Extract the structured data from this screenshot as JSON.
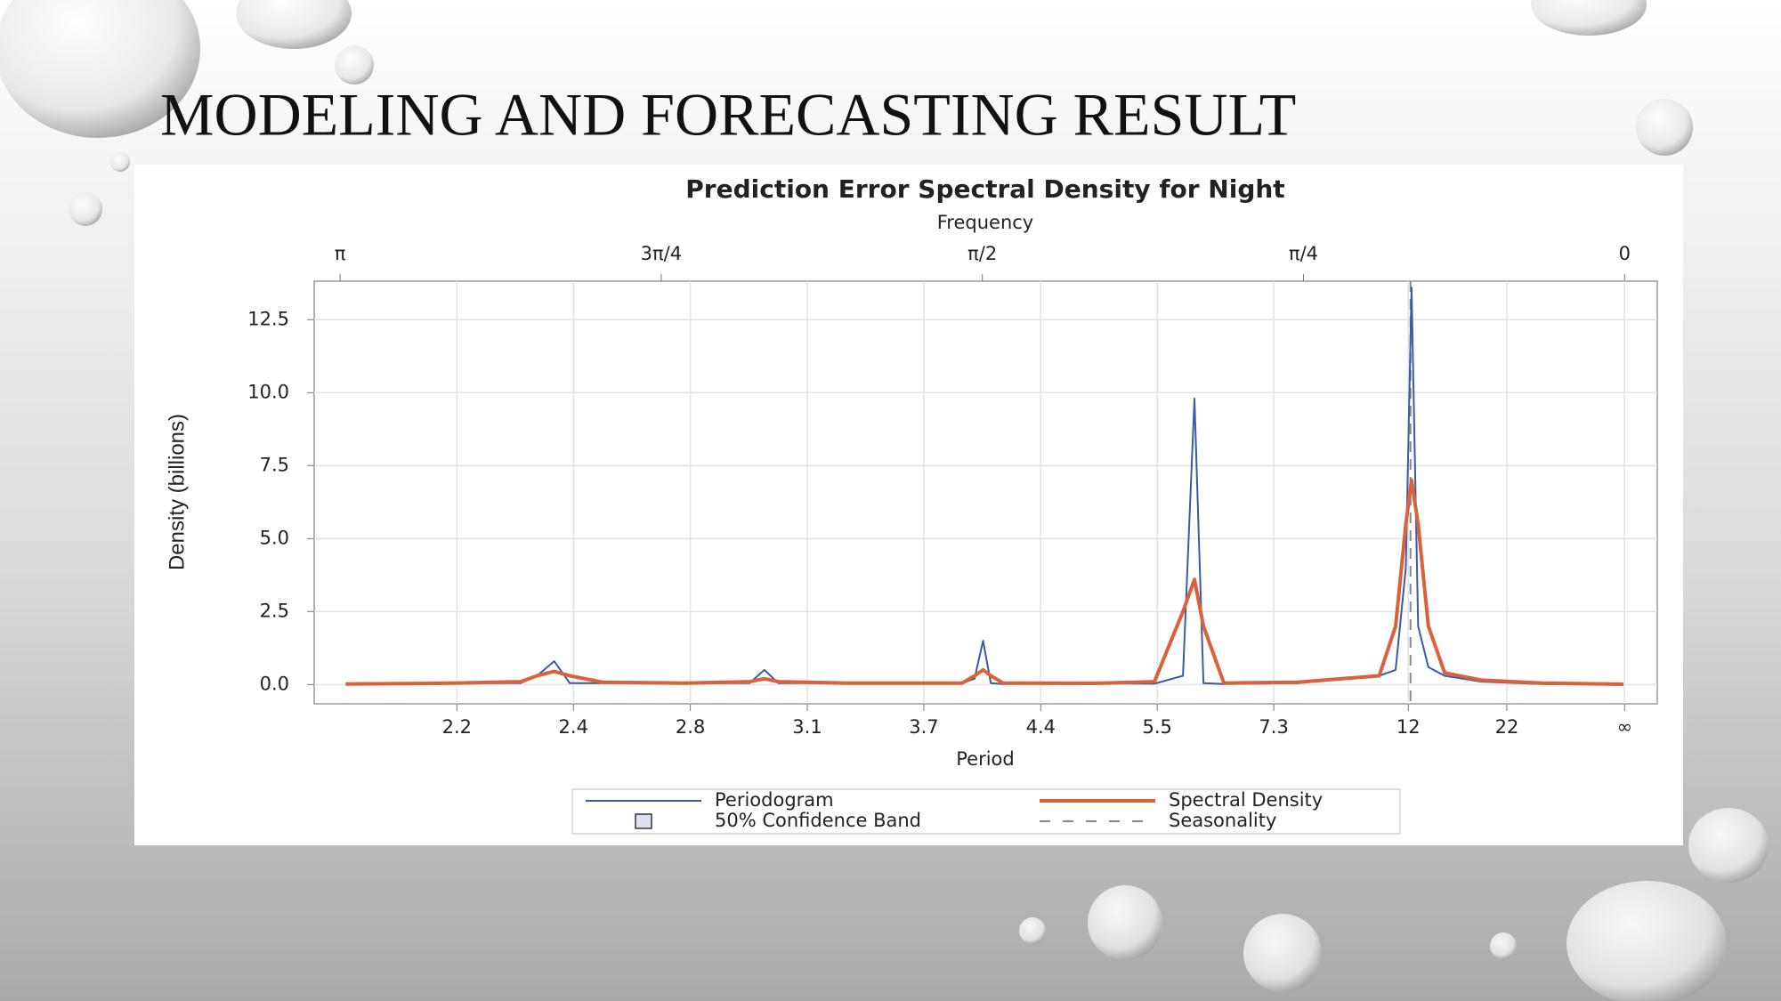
{
  "slide_title": "MODELING AND FORECASTING RESULT",
  "chart_data": {
    "type": "line",
    "title": "Prediction Error Spectral Density for Night",
    "x2_label": "Frequency",
    "x_label": "Period",
    "y_label": "Density (billions)",
    "x": [
      3.128,
      2.9,
      2.7,
      2.66,
      2.618,
      2.58,
      2.5,
      2.3,
      2.14,
      2.104,
      2.07,
      1.9,
      1.62,
      1.59,
      1.569,
      1.55,
      1.52,
      1.3,
      1.15,
      1.08,
      1.052,
      1.03,
      0.98,
      0.8,
      0.6,
      0.56,
      0.535,
      0.521,
      0.505,
      0.48,
      0.44,
      0.35,
      0.2,
      0.003
    ],
    "series": [
      {
        "name": "Periodogram",
        "color": "#3b5ba5",
        "width": 2,
        "values": [
          0.02,
          0.05,
          0.05,
          0.3,
          0.8,
          0.05,
          0.05,
          0.05,
          0.05,
          0.5,
          0.05,
          0.05,
          0.05,
          0.2,
          1.5,
          0.05,
          0.02,
          0.05,
          0.03,
          0.3,
          9.8,
          0.05,
          0.02,
          0.05,
          0.3,
          0.5,
          4,
          13.6,
          2,
          0.6,
          0.3,
          0.1,
          0.02,
          0.0
        ]
      },
      {
        "name": "Spectral Density",
        "color": "#d9623b",
        "width": 4,
        "values": [
          0.02,
          0.04,
          0.1,
          0.3,
          0.45,
          0.3,
          0.08,
          0.05,
          0.1,
          0.2,
          0.1,
          0.05,
          0.05,
          0.3,
          0.5,
          0.3,
          0.05,
          0.04,
          0.1,
          2.5,
          3.6,
          2,
          0.05,
          0.08,
          0.3,
          2,
          5.5,
          7.0,
          5.5,
          2,
          0.4,
          0.15,
          0.05,
          0.01
        ]
      }
    ],
    "legend_extra": [
      "50% Confidence Band",
      "Seasonality"
    ],
    "seasonality_x": 0.5236,
    "xlim": [
      3.205,
      -0.08
    ],
    "ylim": [
      -0.66,
      13.82
    ],
    "xticks": [
      {
        "value": 2.856,
        "label": "2.2"
      },
      {
        "value": 2.571,
        "label": "2.4"
      },
      {
        "value": 2.285,
        "label": "2.8"
      },
      {
        "value": 1.999,
        "label": "3.1"
      },
      {
        "value": 1.714,
        "label": "3.7"
      },
      {
        "value": 1.428,
        "label": "4.4"
      },
      {
        "value": 1.143,
        "label": "5.5"
      },
      {
        "value": 0.858,
        "label": "7.3"
      },
      {
        "value": 0.529,
        "label": "12"
      },
      {
        "value": 0.288,
        "label": "22"
      },
      {
        "value": 0,
        "label": "∞"
      }
    ],
    "x2ticks": [
      {
        "value": 3.14159,
        "label": "π"
      },
      {
        "value": 2.35619,
        "label": "3π/4"
      },
      {
        "value": 1.5708,
        "label": "π/2"
      },
      {
        "value": 0.7854,
        "label": "π/4"
      },
      0
    ],
    "yticks": [
      {
        "value": 0,
        "label": "0.0"
      },
      2.5,
      {
        "value": 5,
        "label": "5.0"
      },
      7.5,
      {
        "value": 10,
        "label": "10.0"
      },
      12.5
    ],
    "grid": true
  }
}
